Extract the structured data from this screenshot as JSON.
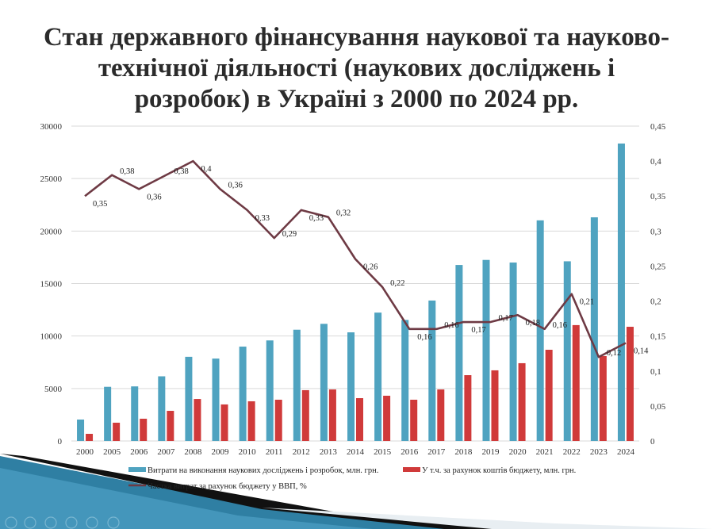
{
  "title_lines": [
    "Стан державного фінансування наукової та науково-",
    "технічної діяльності (наукових досліджень і",
    "розробок) в Україні з 2000 по 2024 рр."
  ],
  "colors": {
    "blue": "#4fa3c0",
    "red": "#d03a3a",
    "line": "#6e3a44",
    "grid": "#d9d9d9"
  },
  "chart_data": {
    "type": "bar",
    "title": "Стан державного фінансування наукової та науково-технічної діяльності (наукових досліджень і розробок) в Україні з 2000 по 2024 рр.",
    "categories": [
      "2000",
      "2005",
      "2006",
      "2007",
      "2008",
      "2009",
      "2010",
      "2011",
      "2012",
      "2013",
      "2014",
      "2015",
      "2016",
      "2017",
      "2018",
      "2019",
      "2020",
      "2021",
      "2022",
      "2023",
      "2024"
    ],
    "series": [
      {
        "name": "Витрати на виконання наукових досліджень і розробок, млн. грн.",
        "type": "bar",
        "axis": "left",
        "values": [
          2040,
          5160,
          5200,
          6160,
          8020,
          7850,
          8990,
          9580,
          10600,
          11160,
          10350,
          12230,
          11530,
          13380,
          16770,
          17250,
          17000,
          21020,
          17120,
          21310,
          28340
        ]
      },
      {
        "name": "У т.ч. за рахунок коштів бюджету, млн. грн.",
        "type": "bar",
        "axis": "left",
        "values": [
          680,
          1740,
          2120,
          2870,
          4000,
          3480,
          3780,
          3930,
          4840,
          4910,
          4080,
          4310,
          3930,
          4910,
          6270,
          6730,
          7410,
          8690,
          11040,
          8090,
          10880
        ]
      },
      {
        "name": "Частка витрат за рахунок бюджету у ВВП, %",
        "type": "line",
        "axis": "right",
        "values": [
          0.35,
          0.38,
          0.36,
          0.38,
          0.4,
          0.36,
          0.33,
          0.29,
          0.33,
          0.32,
          0.26,
          0.22,
          0.16,
          0.16,
          0.17,
          0.17,
          0.18,
          0.16,
          0.21,
          0.12,
          0.14
        ],
        "labels": [
          "0,35",
          "0,38",
          "0,36",
          "0,38",
          "0,4",
          "0,36",
          "0,33",
          "0,29",
          "0,33",
          "0,32",
          "0,26",
          "0,22",
          "0,16",
          "0,16",
          "0,17",
          "0,17",
          "0,18",
          "0,16",
          "0,21",
          "0,12",
          "0,14"
        ]
      }
    ],
    "ylim": [
      0,
      30000
    ],
    "y_ticks": [
      "0",
      "5000",
      "10000",
      "15000",
      "20000",
      "25000",
      "30000"
    ],
    "y2lim": [
      0,
      0.45
    ],
    "y2_ticks": [
      "0",
      "0,05",
      "0,1",
      "0,15",
      "0,2",
      "0,25",
      "0,3",
      "0,35",
      "0,4",
      "0,45"
    ],
    "grid": true,
    "legend_position": "bottom"
  }
}
